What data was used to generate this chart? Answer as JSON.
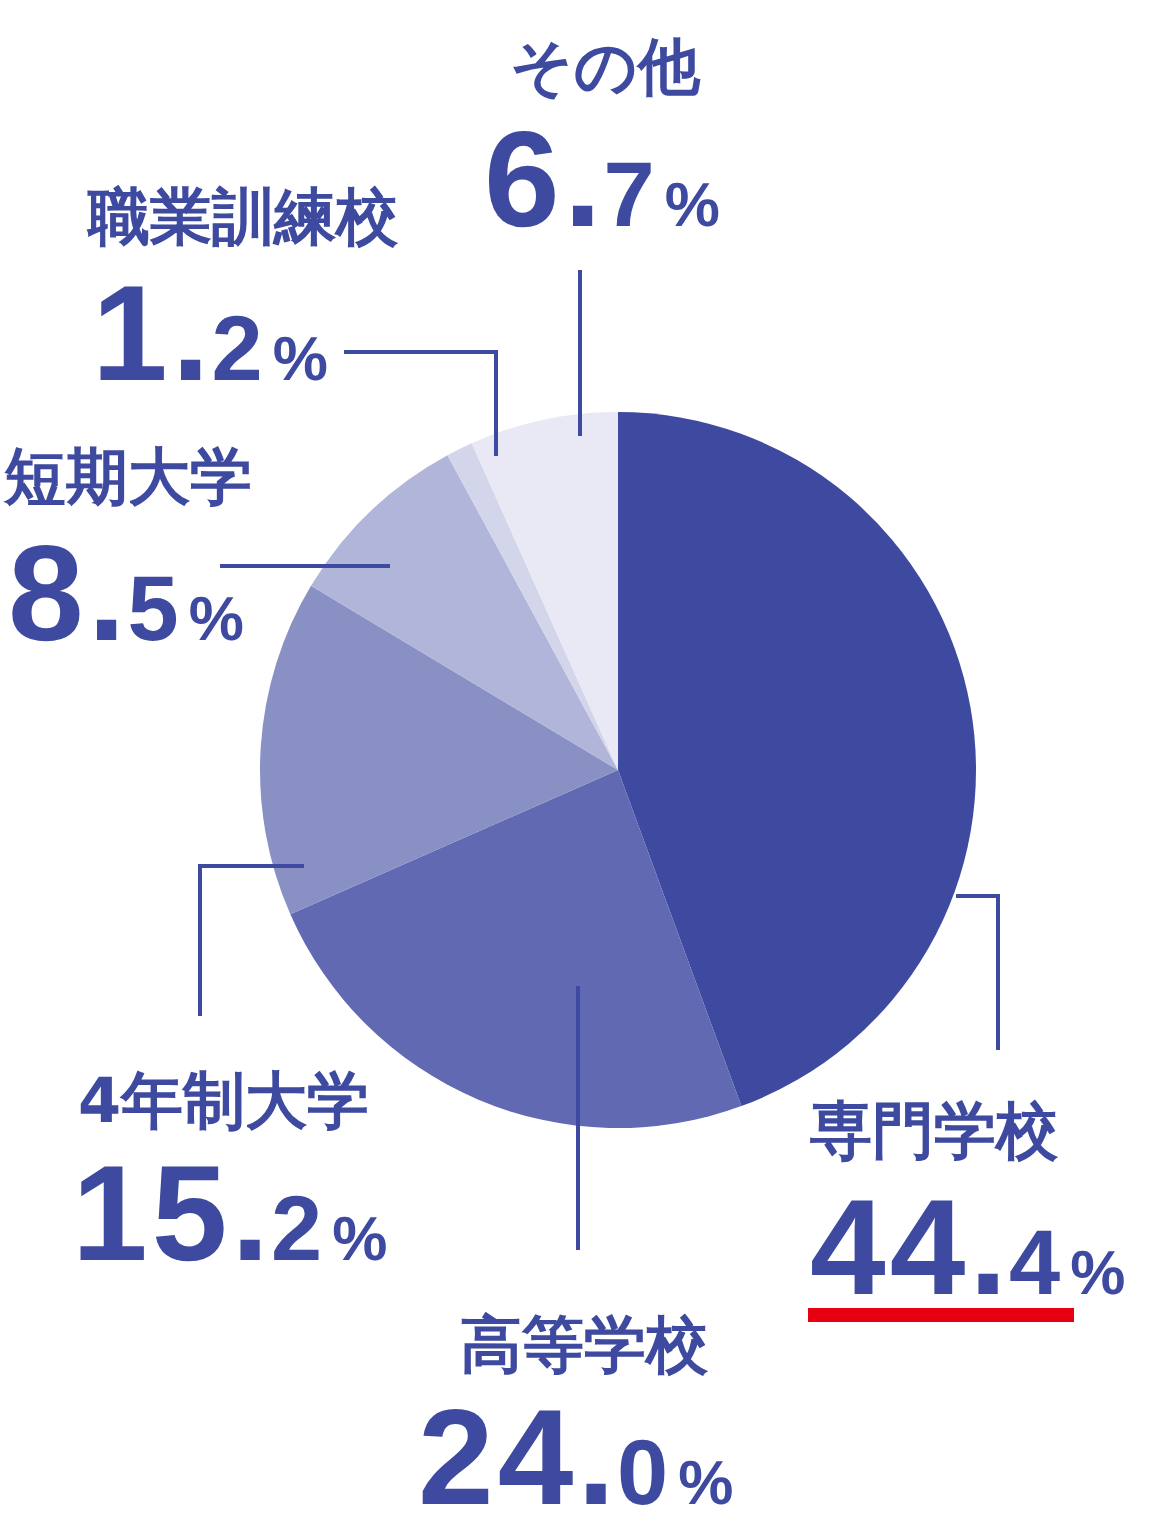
{
  "chart_data": {
    "type": "pie",
    "categories": [
      "専門学校",
      "高等学校",
      "4年制大学",
      "短期大学",
      "職業訓練校",
      "その他"
    ],
    "values": [
      44.4,
      24.0,
      15.2,
      8.5,
      1.2,
      6.7
    ],
    "colors": [
      "#3d4a9f",
      "#6069b1",
      "#8890c4",
      "#b0b5d9",
      "#d3d6ea",
      "#e8e9f4"
    ],
    "value_labels": [
      "44.4%",
      "24.0%",
      "15.2%",
      "8.5%",
      "1.2%",
      "6.7%"
    ]
  }
}
